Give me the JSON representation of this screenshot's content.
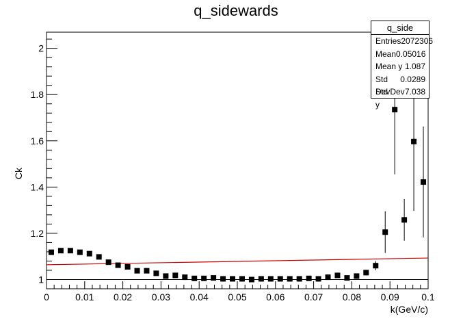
{
  "chart_data": {
    "type": "scatter",
    "title": "q_sidewards",
    "xlabel": "k(GeV/c)",
    "ylabel": "Ck",
    "xlim": [
      0,
      0.1
    ],
    "ylim": [
      0.96,
      2.07
    ],
    "x_ticks": [
      "0",
      "0.01",
      "0.02",
      "0.03",
      "0.04",
      "0.05",
      "0.06",
      "0.07",
      "0.08",
      "0.09",
      "0.1"
    ],
    "y_ticks": [
      "1",
      "1.2",
      "1.4",
      "1.6",
      "1.8",
      "2"
    ],
    "grid": false,
    "points": [
      {
        "x": 0.00125,
        "y": 1.118,
        "err": 0.01
      },
      {
        "x": 0.00375,
        "y": 1.125,
        "err": 0.006
      },
      {
        "x": 0.00625,
        "y": 1.125,
        "err": 0.005
      },
      {
        "x": 0.00875,
        "y": 1.118,
        "err": 0.004
      },
      {
        "x": 0.01125,
        "y": 1.112,
        "err": 0.004
      },
      {
        "x": 0.01375,
        "y": 1.098,
        "err": 0.004
      },
      {
        "x": 0.01625,
        "y": 1.075,
        "err": 0.003
      },
      {
        "x": 0.01875,
        "y": 1.062,
        "err": 0.003
      },
      {
        "x": 0.02125,
        "y": 1.055,
        "err": 0.003
      },
      {
        "x": 0.02375,
        "y": 1.038,
        "err": 0.003
      },
      {
        "x": 0.02625,
        "y": 1.038,
        "err": 0.003
      },
      {
        "x": 0.02875,
        "y": 1.027,
        "err": 0.003
      },
      {
        "x": 0.03125,
        "y": 1.015,
        "err": 0.003
      },
      {
        "x": 0.03375,
        "y": 1.018,
        "err": 0.003
      },
      {
        "x": 0.03625,
        "y": 1.01,
        "err": 0.003
      },
      {
        "x": 0.03875,
        "y": 1.005,
        "err": 0.003
      },
      {
        "x": 0.04125,
        "y": 1.005,
        "err": 0.003
      },
      {
        "x": 0.04375,
        "y": 1.007,
        "err": 0.003
      },
      {
        "x": 0.04625,
        "y": 1.003,
        "err": 0.003
      },
      {
        "x": 0.04875,
        "y": 1.003,
        "err": 0.003
      },
      {
        "x": 0.05125,
        "y": 1.003,
        "err": 0.003
      },
      {
        "x": 0.05375,
        "y": 1.0,
        "err": 0.003
      },
      {
        "x": 0.05625,
        "y": 1.003,
        "err": 0.003
      },
      {
        "x": 0.05875,
        "y": 1.003,
        "err": 0.003
      },
      {
        "x": 0.06125,
        "y": 1.003,
        "err": 0.003
      },
      {
        "x": 0.06375,
        "y": 1.003,
        "err": 0.003
      },
      {
        "x": 0.06625,
        "y": 1.003,
        "err": 0.003
      },
      {
        "x": 0.06875,
        "y": 1.005,
        "err": 0.003
      },
      {
        "x": 0.07125,
        "y": 1.003,
        "err": 0.004
      },
      {
        "x": 0.07375,
        "y": 1.01,
        "err": 0.004
      },
      {
        "x": 0.07625,
        "y": 1.018,
        "err": 0.005
      },
      {
        "x": 0.07875,
        "y": 1.007,
        "err": 0.006
      },
      {
        "x": 0.08125,
        "y": 1.015,
        "err": 0.008
      },
      {
        "x": 0.08375,
        "y": 1.03,
        "err": 0.012
      },
      {
        "x": 0.08625,
        "y": 1.06,
        "err": 0.02
      },
      {
        "x": 0.08875,
        "y": 1.205,
        "err": 0.09
      },
      {
        "x": 0.09125,
        "y": 1.735,
        "err": 0.28
      },
      {
        "x": 0.09375,
        "y": 1.258,
        "err": 0.09
      },
      {
        "x": 0.09625,
        "y": 1.597,
        "err": 0.3
      },
      {
        "x": 0.09875,
        "y": 1.422,
        "err": 0.24
      }
    ],
    "fit_line": {
      "color": "#cc0000",
      "x": [
        0,
        0.1
      ],
      "y": [
        1.064,
        1.093
      ]
    },
    "reference_line": {
      "y": 1.0,
      "color": "#000000"
    },
    "marker_color": "#000000"
  },
  "stats": {
    "title": "q_side",
    "rows": [
      {
        "label": "Entries",
        "value": "2072306"
      },
      {
        "label": "Mean",
        "value": "0.05016"
      },
      {
        "label": "Mean y",
        "value": "1.087"
      },
      {
        "label": "Std Dev",
        "value": "0.0289"
      },
      {
        "label": "Std Dev y",
        "value": "7.038"
      }
    ]
  }
}
